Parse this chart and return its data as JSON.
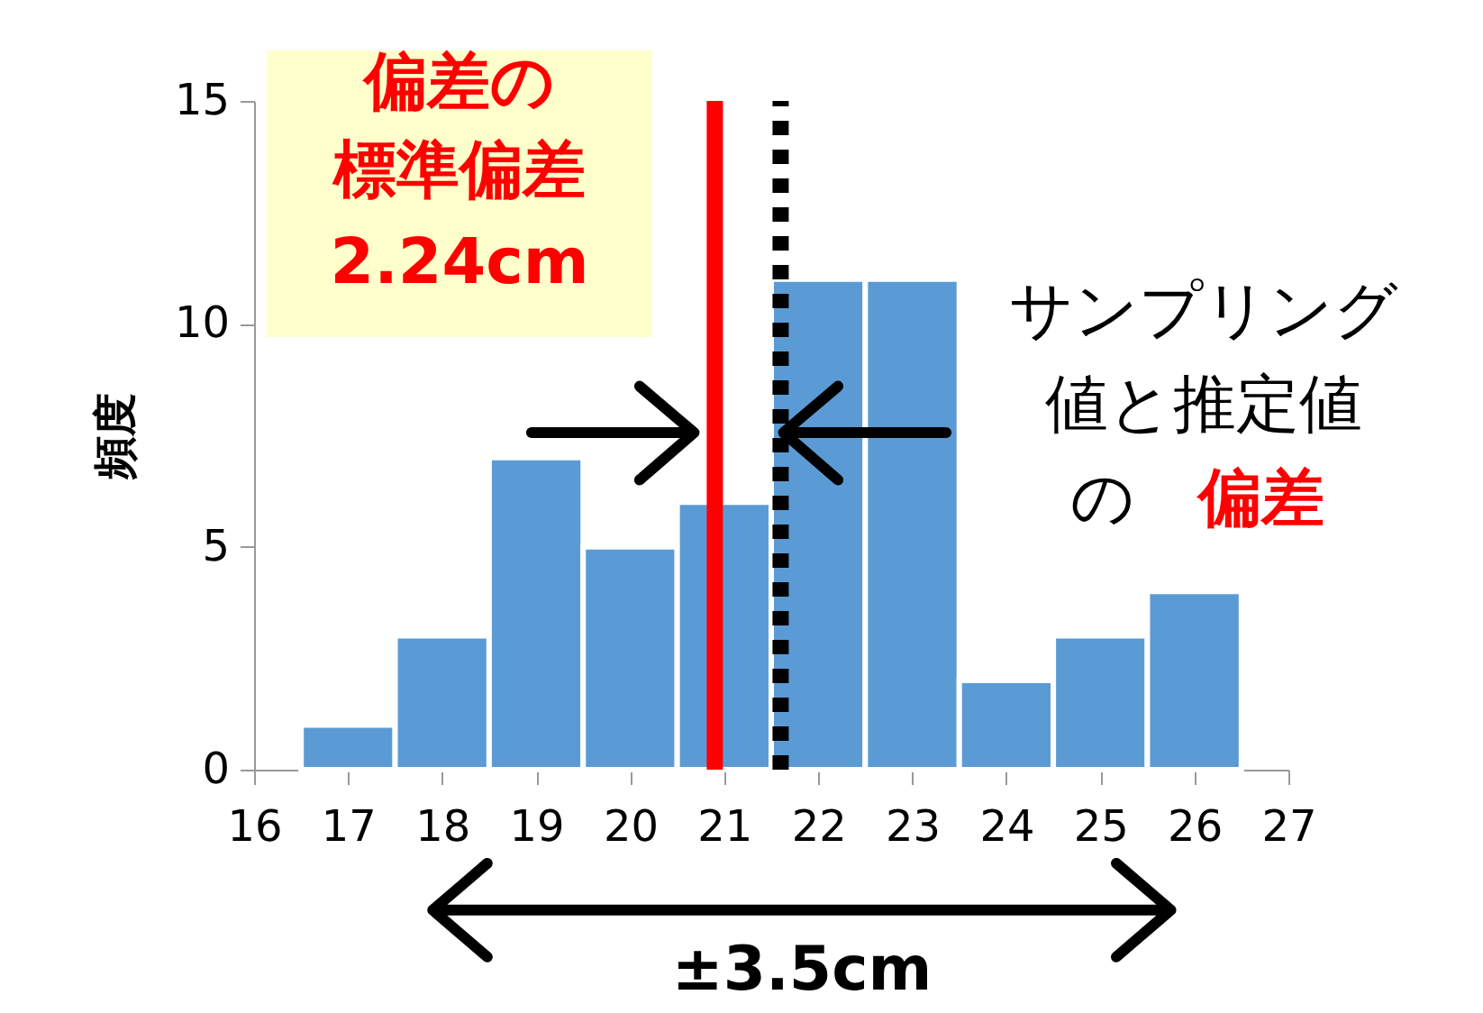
{
  "chart_data": {
    "type": "histogram",
    "bins": [
      16.5,
      17.5,
      18.5,
      19.5,
      20.5,
      21.5,
      22.5,
      23.5,
      24.5,
      25.5,
      26.5
    ],
    "values": [
      1,
      3,
      7,
      5,
      6,
      11,
      11,
      2,
      3,
      4
    ],
    "color": "#5b9bd5",
    "ylabel": "頻度",
    "xlim": [
      16,
      27
    ],
    "xticks": [
      16,
      17,
      18,
      19,
      20,
      21,
      22,
      23,
      24,
      25,
      26,
      27
    ],
    "ylim": [
      0,
      15
    ],
    "yticks": [
      0,
      5,
      10,
      15
    ],
    "grid": false,
    "ref_lines": [
      {
        "axis": "x",
        "value": 20.9,
        "color": "#ff0000",
        "line_style": "solid"
      },
      {
        "axis": "x",
        "value": 21.6,
        "color": "#000000",
        "line_style": "dotted"
      }
    ],
    "annotations": [
      "偏差の",
      "標準偏差",
      "2.24cm",
      "サンプリング",
      "値と推定値",
      "の",
      "偏差",
      "±3.5cm"
    ]
  }
}
